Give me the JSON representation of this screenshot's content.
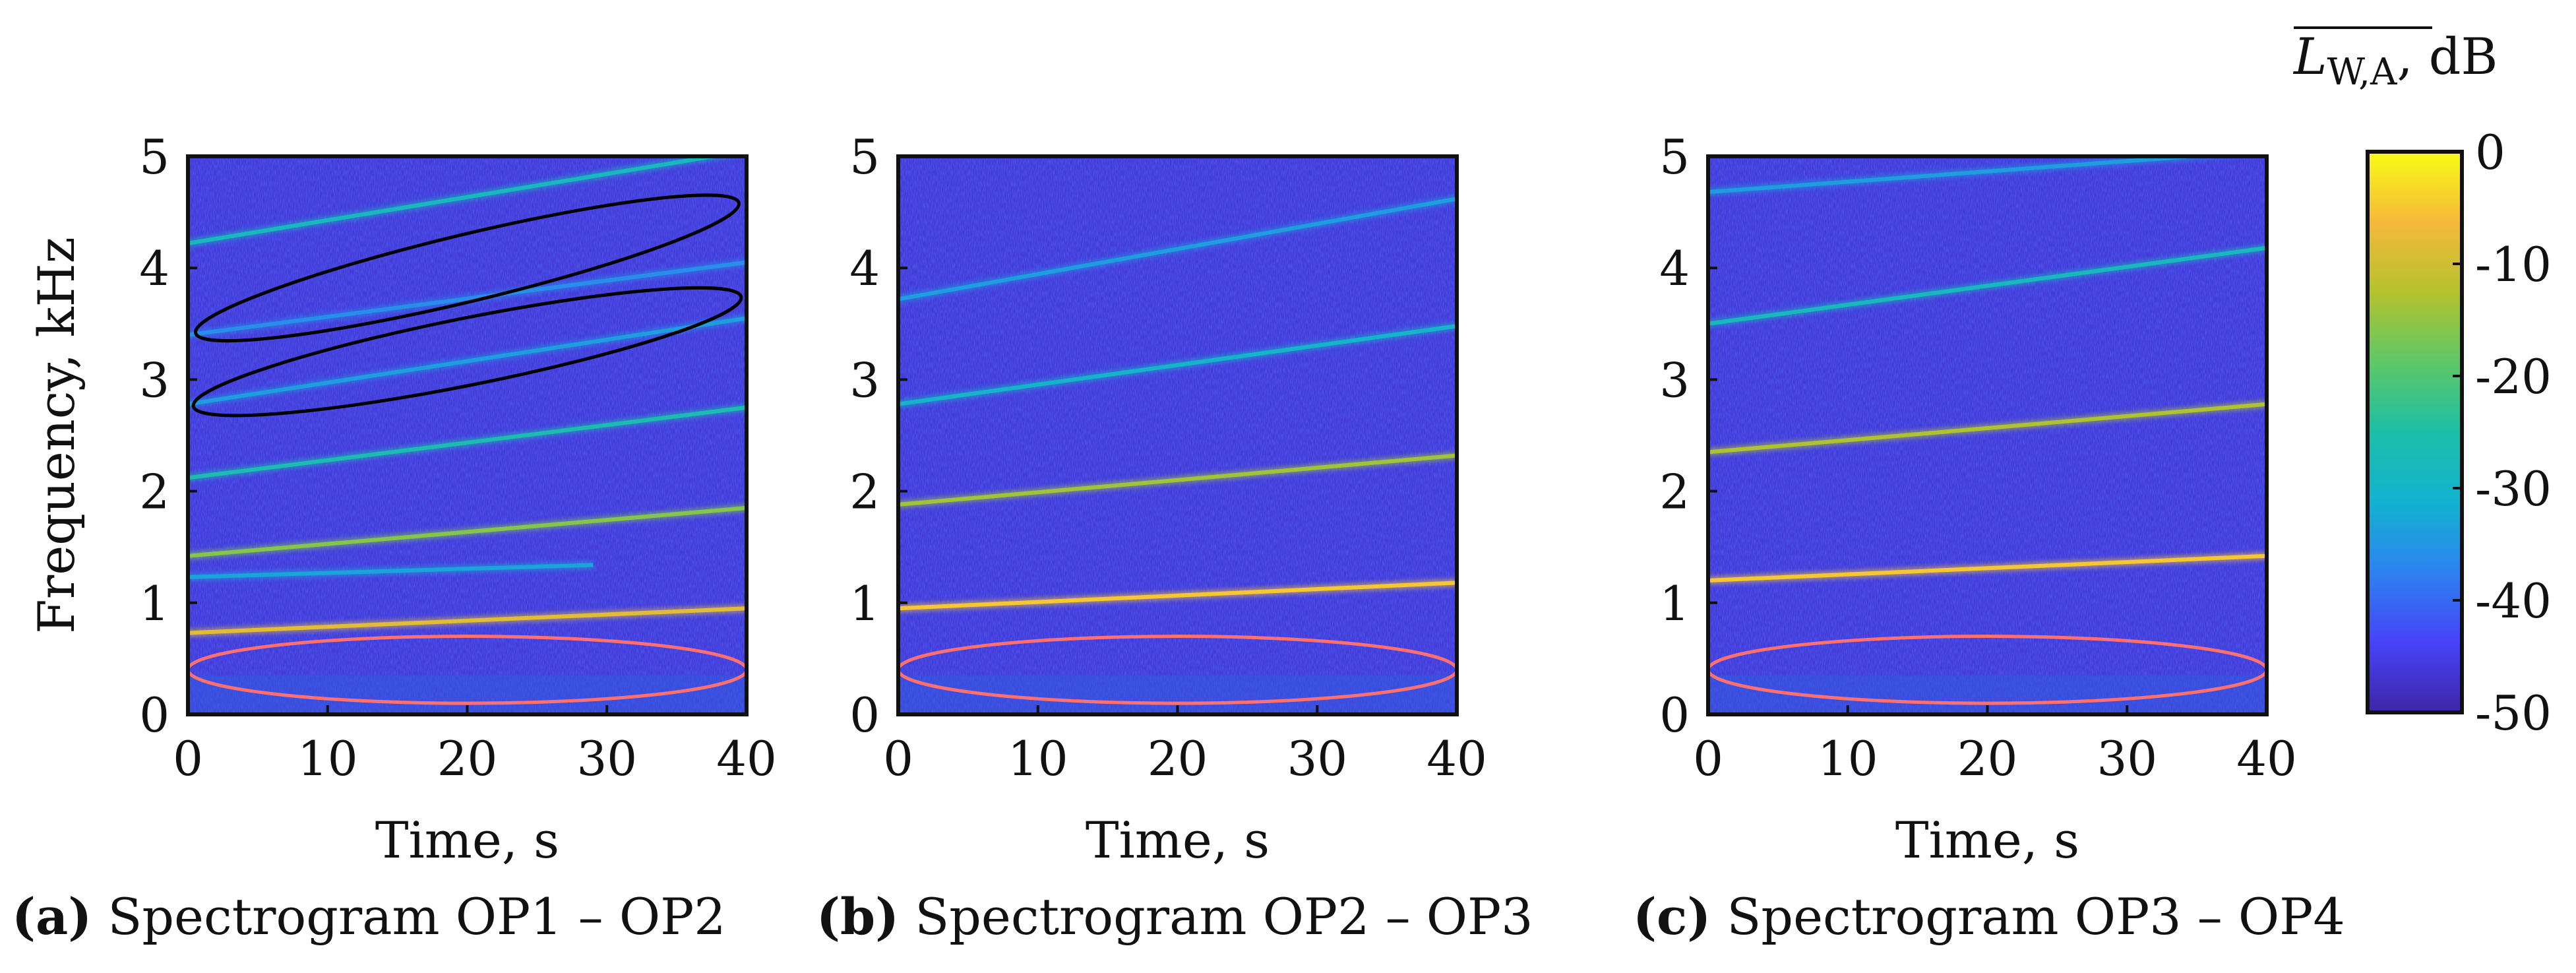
{
  "chart_data": [
    {
      "type": "heatmap",
      "panel": "(a)",
      "caption": "Spectrogram OP1 – OP2",
      "xlabel": "Time, s",
      "ylabel": "Frequency, kHz",
      "xlim": [
        0,
        40
      ],
      "ylim": [
        0,
        5
      ],
      "xticks": [
        "0",
        "10",
        "20",
        "30",
        "40"
      ],
      "yticks": [
        "0",
        "1",
        "2",
        "3",
        "4",
        "5"
      ],
      "background_level_db": -46,
      "tonal_lines": [
        {
          "f_start_khz": 0.73,
          "f_end_khz": 0.95,
          "level_db": -8
        },
        {
          "f_start_khz": 1.23,
          "f_end_khz": 1.38,
          "level_db": -33,
          "t_end_s": 29
        },
        {
          "f_start_khz": 1.42,
          "f_end_khz": 1.85,
          "level_db": -16
        },
        {
          "f_start_khz": 2.12,
          "f_end_khz": 2.75,
          "level_db": -26
        },
        {
          "f_start_khz": 2.78,
          "f_end_khz": 3.55,
          "level_db": -34
        },
        {
          "f_start_khz": 3.4,
          "f_end_khz": 4.05,
          "level_db": -36
        },
        {
          "f_start_khz": 4.22,
          "f_end_khz": 5.05,
          "level_db": -28
        }
      ],
      "annotations": [
        {
          "shape": "ellipse",
          "color": "#000000",
          "cx_s": 20,
          "cy_khz": 4.0,
          "rx_s": 20,
          "ry_khz": 0.3,
          "tilt_khz_per_s": 0.03
        },
        {
          "shape": "ellipse",
          "color": "#ff7070",
          "cx_s": 20,
          "cy_khz": 0.4,
          "rx_s": 20,
          "ry_khz": 0.3,
          "tilt_khz_per_s": 0
        }
      ]
    },
    {
      "type": "heatmap",
      "panel": "(b)",
      "caption": "Spectrogram OP2 – OP3",
      "xlabel": "Time, s",
      "ylabel": "",
      "xlim": [
        0,
        40
      ],
      "ylim": [
        0,
        5
      ],
      "xticks": [
        "0",
        "10",
        "20",
        "30",
        "40"
      ],
      "yticks": [
        "0",
        "1",
        "2",
        "3",
        "4",
        "5"
      ],
      "background_level_db": -46,
      "tonal_lines": [
        {
          "f_start_khz": 0.95,
          "f_end_khz": 1.18,
          "level_db": -5
        },
        {
          "f_start_khz": 1.88,
          "f_end_khz": 2.32,
          "level_db": -14
        },
        {
          "f_start_khz": 2.78,
          "f_end_khz": 3.48,
          "level_db": -30
        },
        {
          "f_start_khz": 3.72,
          "f_end_khz": 4.62,
          "level_db": -34
        }
      ],
      "annotations": [
        {
          "shape": "ellipse",
          "color": "#ff7070",
          "cx_s": 20,
          "cy_khz": 0.4,
          "rx_s": 20,
          "ry_khz": 0.3,
          "tilt_khz_per_s": 0
        }
      ]
    },
    {
      "type": "heatmap",
      "panel": "(c)",
      "caption": "Spectrogram OP3 – OP4",
      "xlabel": "Time, s",
      "ylabel": "",
      "xlim": [
        0,
        40
      ],
      "ylim": [
        0,
        5
      ],
      "xticks": [
        "0",
        "10",
        "20",
        "30",
        "40"
      ],
      "yticks": [
        "0",
        "1",
        "2",
        "3",
        "4",
        "5"
      ],
      "background_level_db": -46,
      "tonal_lines": [
        {
          "f_start_khz": 1.2,
          "f_end_khz": 1.42,
          "level_db": -5
        },
        {
          "f_start_khz": 2.35,
          "f_end_khz": 2.78,
          "level_db": -13
        },
        {
          "f_start_khz": 3.5,
          "f_end_khz": 4.18,
          "level_db": -28
        },
        {
          "f_start_khz": 4.68,
          "f_end_khz": 5.05,
          "level_db": -34
        }
      ],
      "annotations": [
        {
          "shape": "ellipse",
          "color": "#ff7070",
          "cx_s": 20,
          "cy_khz": 0.4,
          "rx_s": 20,
          "ry_khz": 0.3,
          "tilt_khz_per_s": 0
        }
      ]
    }
  ],
  "colorbar": {
    "label_main": "L",
    "label_sub": "W,A",
    "label_unit": ", dB",
    "range_db": [
      -50,
      0
    ],
    "ticks": [
      "0",
      "-10",
      "-20",
      "-30",
      "-40",
      "-50"
    ],
    "colors": [
      "#3e26a8",
      "#4743f8",
      "#2d82f0",
      "#13b2d1",
      "#1bbfa8",
      "#5ec866",
      "#b5c22e",
      "#f5b93a",
      "#f9fb15"
    ]
  },
  "captions": [
    {
      "bold": "(a)",
      "text": " Spectrogram OP1 – OP2"
    },
    {
      "bold": "(b)",
      "text": " Spectrogram OP2 – OP3"
    },
    {
      "bold": "(c)",
      "text": " Spectrogram OP3 – OP4"
    }
  ]
}
